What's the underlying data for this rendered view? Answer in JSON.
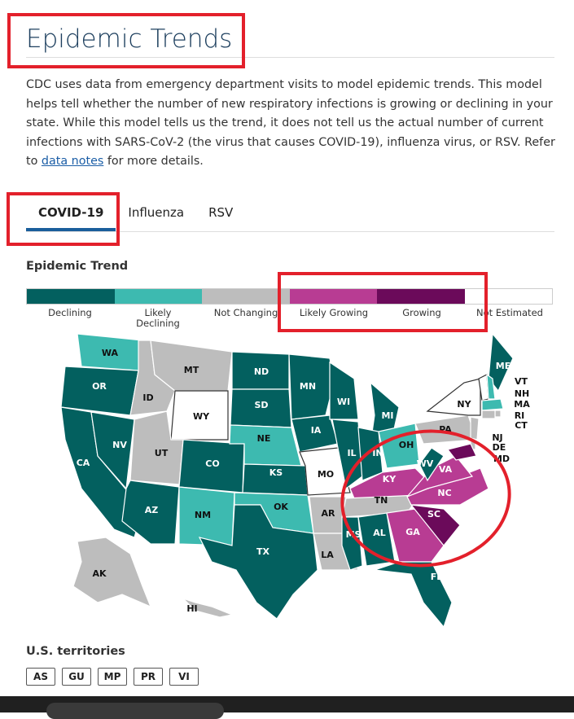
{
  "title": "Epidemic Trends",
  "intro": {
    "text1": "CDC uses data from emergency department visits to model epidemic trends. This model helps tell whether the number of new respiratory infections is growing or declining in your state. While this model tells us the trend, it does not tell us the actual number of current infections with SARS-CoV-2 (the virus that causes COVID-19), influenza virus, or RSV. Refer to ",
    "link": "data notes",
    "text2": " for more details."
  },
  "tabs": [
    {
      "label": "COVID-19",
      "active": true
    },
    {
      "label": "Influenza"
    },
    {
      "label": "RSV"
    }
  ],
  "legend": {
    "title": "Epidemic Trend",
    "items": [
      {
        "label": "Declining",
        "color": "#03605f"
      },
      {
        "label": "Likely Declining",
        "color": "#3dbab0"
      },
      {
        "label": "Not Changing",
        "color": "#bdbdbd"
      },
      {
        "label": "Likely Growing",
        "color": "#b83c93"
      },
      {
        "label": "Growing",
        "color": "#6b0a5a"
      },
      {
        "label": "Not Estimated",
        "color": "#ffffff"
      }
    ]
  },
  "states": [
    {
      "abbr": "WA",
      "trend": "Likely Declining"
    },
    {
      "abbr": "OR",
      "trend": "Declining"
    },
    {
      "abbr": "CA",
      "trend": "Declining"
    },
    {
      "abbr": "NV",
      "trend": "Declining"
    },
    {
      "abbr": "ID",
      "trend": "Not Changing"
    },
    {
      "abbr": "MT",
      "trend": "Not Changing"
    },
    {
      "abbr": "WY",
      "trend": "Not Estimated"
    },
    {
      "abbr": "UT",
      "trend": "Not Changing"
    },
    {
      "abbr": "CO",
      "trend": "Declining"
    },
    {
      "abbr": "AZ",
      "trend": "Declining"
    },
    {
      "abbr": "NM",
      "trend": "Likely Declining"
    },
    {
      "abbr": "ND",
      "trend": "Declining"
    },
    {
      "abbr": "SD",
      "trend": "Declining"
    },
    {
      "abbr": "NE",
      "trend": "Likely Declining"
    },
    {
      "abbr": "KS",
      "trend": "Declining"
    },
    {
      "abbr": "OK",
      "trend": "Likely Declining"
    },
    {
      "abbr": "TX",
      "trend": "Declining"
    },
    {
      "abbr": "MN",
      "trend": "Declining"
    },
    {
      "abbr": "IA",
      "trend": "Declining"
    },
    {
      "abbr": "MO",
      "trend": "Not Estimated"
    },
    {
      "abbr": "AR",
      "trend": "Not Changing"
    },
    {
      "abbr": "LA",
      "trend": "Not Changing"
    },
    {
      "abbr": "WI",
      "trend": "Declining"
    },
    {
      "abbr": "IL",
      "trend": "Declining"
    },
    {
      "abbr": "MI",
      "trend": "Declining"
    },
    {
      "abbr": "IN",
      "trend": "Declining"
    },
    {
      "abbr": "OH",
      "trend": "Likely Declining"
    },
    {
      "abbr": "KY",
      "trend": "Likely Growing"
    },
    {
      "abbr": "TN",
      "trend": "Not Changing"
    },
    {
      "abbr": "MS",
      "trend": "Declining"
    },
    {
      "abbr": "AL",
      "trend": "Declining"
    },
    {
      "abbr": "GA",
      "trend": "Likely Growing"
    },
    {
      "abbr": "FL",
      "trend": "Declining"
    },
    {
      "abbr": "SC",
      "trend": "Growing"
    },
    {
      "abbr": "NC",
      "trend": "Likely Growing"
    },
    {
      "abbr": "VA",
      "trend": "Likely Growing"
    },
    {
      "abbr": "WV",
      "trend": "Declining"
    },
    {
      "abbr": "PA",
      "trend": "Not Changing"
    },
    {
      "abbr": "NY",
      "trend": "Not Estimated"
    },
    {
      "abbr": "ME",
      "trend": "Declining"
    },
    {
      "abbr": "VT",
      "trend": "Not Estimated"
    },
    {
      "abbr": "NH",
      "trend": "Likely Declining"
    },
    {
      "abbr": "MA",
      "trend": "Likely Declining"
    },
    {
      "abbr": "RI",
      "trend": "Not Changing"
    },
    {
      "abbr": "CT",
      "trend": "Not Changing"
    },
    {
      "abbr": "NJ",
      "trend": "Not Changing"
    },
    {
      "abbr": "DE",
      "trend": "Not Changing"
    },
    {
      "abbr": "MD",
      "trend": "Growing"
    },
    {
      "abbr": "AK",
      "trend": "Not Changing"
    },
    {
      "abbr": "HI",
      "trend": "Not Changing"
    }
  ],
  "territories": {
    "title": "U.S. territories",
    "items": [
      "AS",
      "GU",
      "MP",
      "PR",
      "VI"
    ]
  }
}
